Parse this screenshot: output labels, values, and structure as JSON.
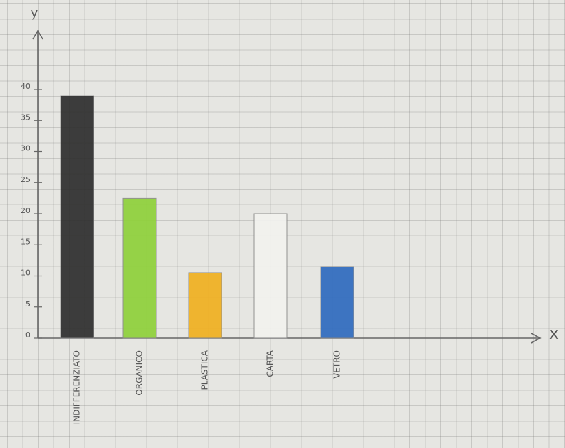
{
  "chart_data": {
    "type": "bar",
    "y_label": "y",
    "x_label": "x",
    "categories": [
      "INDIFFERENZIATO",
      "ORGANICO",
      "PLASTICA",
      "CARTA",
      "VETRO"
    ],
    "values": [
      39,
      22.5,
      10.5,
      20,
      11.5
    ],
    "colors": [
      "#2e2e2e",
      "#8fd13a",
      "#f0b020",
      "#f2f2ef",
      "#2f6bbf"
    ],
    "ylim": [
      0,
      40
    ],
    "yticks": [
      0,
      5,
      10,
      15,
      20,
      25,
      30,
      35,
      40
    ]
  }
}
